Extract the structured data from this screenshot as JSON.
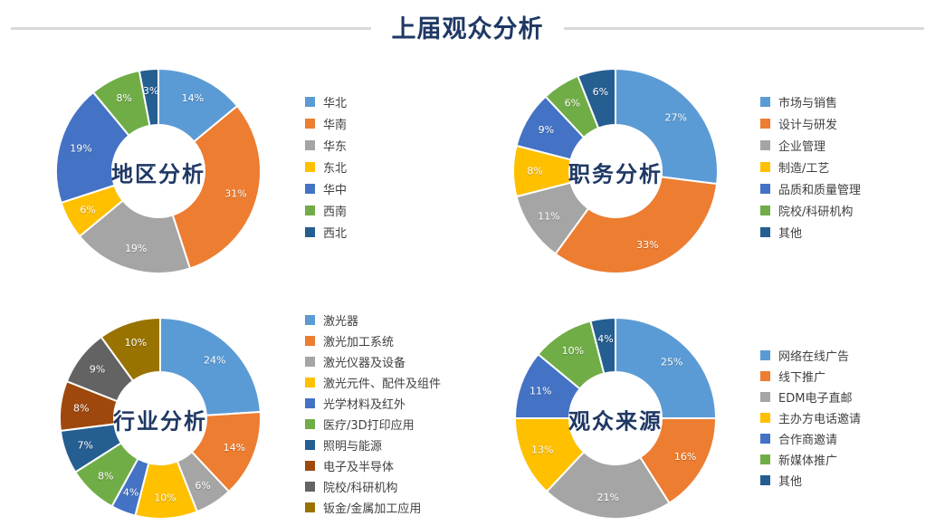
{
  "page": {
    "title": "上届观众分析"
  },
  "theme": {
    "palette": [
      "#5B9BD5",
      "#ED7D31",
      "#A5A5A5",
      "#FFC000",
      "#4472C4",
      "#70AD47",
      "#255E91",
      "#9E480E",
      "#636363",
      "#997300"
    ],
    "heading_color": "#1F3864",
    "center_title_color": "#1F3864",
    "legend_text_color": "#404040",
    "divider_color": "#D9D9D9",
    "slice_label_color": "#FFFFFF",
    "slice_border_color": "#FFFFFF"
  },
  "chart_data": [
    {
      "type": "pie",
      "donut": true,
      "title": "地区分析",
      "legend_position": "right",
      "start_angle": 0,
      "direction": "clockwise",
      "categories": [
        "华北",
        "华南",
        "华东",
        "东北",
        "华中",
        "西南",
        "西北"
      ],
      "values": [
        14,
        31,
        19,
        6,
        19,
        8,
        3
      ],
      "labels": [
        "14%",
        "31%",
        "19%",
        "6%",
        "19%",
        "8%",
        "3%"
      ],
      "unit": "percent"
    },
    {
      "type": "pie",
      "donut": true,
      "title": "职务分析",
      "legend_position": "right",
      "start_angle": 0,
      "direction": "clockwise",
      "categories": [
        "市场与销售",
        "设计与研发",
        "企业管理",
        "制造/工艺",
        "品质和质量管理",
        "院校/科研机构",
        "其他"
      ],
      "values": [
        27,
        33,
        11,
        8,
        9,
        6,
        6
      ],
      "labels": [
        "27%",
        "33%",
        "11%",
        "8%",
        "9%",
        "6%",
        "6%"
      ],
      "unit": "percent"
    },
    {
      "type": "pie",
      "donut": true,
      "title": "行业分析",
      "legend_position": "right",
      "start_angle": 0,
      "direction": "clockwise",
      "categories": [
        "激光器",
        "激光加工系统",
        "激光仪器及设备",
        "激光元件、配件及组件",
        "光学材料及红外",
        "医疗/3D打印应用",
        "照明与能源",
        "电子及半导体",
        "院校/科研机构",
        "钣金/金属加工应用"
      ],
      "values": [
        24,
        14,
        6,
        10,
        4,
        8,
        7,
        8,
        9,
        10
      ],
      "labels": [
        "24%",
        "14%",
        "6%",
        "10%",
        "4%",
        "8%",
        "7%",
        "8%",
        "9%",
        "10%"
      ],
      "unit": "percent"
    },
    {
      "type": "pie",
      "donut": true,
      "title": "观众来源",
      "legend_position": "right",
      "start_angle": 0,
      "direction": "clockwise",
      "categories": [
        "网络在线广告",
        "线下推广",
        "EDM电子直邮",
        "主办方电话邀请",
        "合作商邀请",
        "新媒体推广",
        "其他"
      ],
      "values": [
        25,
        16,
        21,
        13,
        11,
        10,
        4
      ],
      "labels": [
        "25%",
        "16%",
        "21%",
        "13%",
        "11%",
        "10%",
        "4%"
      ],
      "unit": "percent"
    }
  ]
}
